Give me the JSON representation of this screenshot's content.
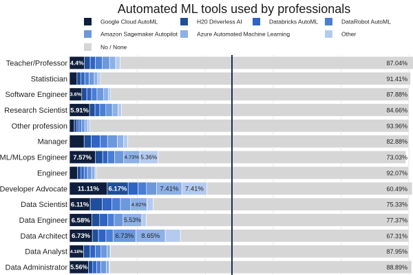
{
  "chart_data": {
    "type": "bar",
    "orientation": "horizontal",
    "stacked": true,
    "title": "Automated ML tools used by professionals",
    "xlim": [
      0,
      100
    ],
    "grid": true,
    "legend_position": "top",
    "series": [
      {
        "name": "Google Cloud AutoML",
        "color": "#0f1e3c"
      },
      {
        "name": "H20 Driverless AI",
        "color": "#1f4e9a"
      },
      {
        "name": "Databricks AutoML",
        "color": "#2f63c4"
      },
      {
        "name": "DataRobot AutoML",
        "color": "#4a7ed4"
      },
      {
        "name": "Amazon Sagemaker Autopilot",
        "color": "#6c98dc"
      },
      {
        "name": "Azure Automated Machine Learning",
        "color": "#8db0e6"
      },
      {
        "name": "Other",
        "color": "#b4cbef"
      },
      {
        "name": "No / None",
        "color": "#d6d6d6"
      }
    ],
    "categories": [
      "Teacher/Professor",
      "Statistician",
      "Software Engineer",
      "Research Scientist",
      "Other profession",
      "Manager",
      "ML/MLops Engineer",
      "Engineer",
      "Developer Advocate",
      "Data Scientist",
      "Data Engineer",
      "Data Architect",
      "Data Analyst",
      "Data Administrator"
    ],
    "rows": [
      {
        "values": [
          4.4,
          1.7,
          1.5,
          2.0,
          2.2,
          1.8,
          1.3,
          87.04
        ],
        "labels": [
          "4.4%",
          "",
          "",
          "",
          "",
          "",
          "",
          "87.04%"
        ]
      },
      {
        "values": [
          2.2,
          1.1,
          1.2,
          1.3,
          1.5,
          1.0,
          0.79,
          91.41
        ],
        "labels": [
          "",
          "",
          "",
          "",
          "",
          "",
          "",
          "91.41%"
        ]
      },
      {
        "values": [
          3.6,
          1.5,
          1.4,
          1.6,
          1.9,
          1.5,
          0.62,
          87.88
        ],
        "labels": [
          "3.6%",
          "",
          "",
          "",
          "",
          "",
          "",
          "87.88%"
        ]
      },
      {
        "values": [
          5.91,
          1.6,
          1.4,
          1.8,
          1.9,
          1.7,
          1.03,
          84.66
        ],
        "labels": [
          "5.91%",
          "",
          "",
          "",
          "",
          "",
          "",
          "84.66%"
        ]
      },
      {
        "values": [
          1.4,
          0.8,
          0.6,
          0.7,
          1.0,
          0.8,
          0.74,
          93.96
        ],
        "labels": [
          "",
          "",
          "",
          "",
          "",
          "",
          "",
          "93.96%"
        ]
      },
      {
        "values": [
          4.3,
          2.1,
          2.6,
          2.2,
          2.9,
          1.8,
          1.22,
          82.88
        ],
        "labels": [
          "",
          "",
          "",
          "",
          "",
          "",
          "",
          "82.88%"
        ]
      },
      {
        "values": [
          7.57,
          2.2,
          1.5,
          2.0,
          2.7,
          4.73,
          5.36,
          73.03
        ],
        "labels": [
          "7.57%",
          "",
          "",
          "",
          "",
          "4.73%",
          "5.36%",
          "73.03%"
        ]
      },
      {
        "values": [
          2.3,
          1.1,
          0.9,
          1.0,
          1.2,
          1.0,
          0.41,
          92.07
        ],
        "labels": [
          "",
          "",
          "",
          "",
          "",
          "",
          "",
          "92.07%"
        ]
      },
      {
        "values": [
          11.11,
          6.17,
          2.9,
          2.5,
          3.0,
          7.41,
          7.41,
          60.49
        ],
        "labels": [
          "11.11%",
          "6.17%",
          "",
          "",
          "",
          "7.41%",
          "7.41%",
          "60.49%"
        ]
      },
      {
        "values": [
          6.11,
          3.5,
          2.9,
          2.5,
          3.0,
          4.82,
          1.81,
          75.33
        ],
        "labels": [
          "6.11%",
          "",
          "",
          "",
          "",
          "4.82%",
          "",
          "75.33%"
        ]
      },
      {
        "values": [
          6.58,
          2.3,
          2.4,
          1.9,
          2.6,
          5.53,
          1.31,
          77.37
        ],
        "labels": [
          "6.58%",
          "",
          "",
          "",
          "",
          "5.53%",
          "",
          "77.37%"
        ]
      },
      {
        "values": [
          6.73,
          1.8,
          2.2,
          2.1,
          6.73,
          8.65,
          4.48,
          67.31
        ],
        "labels": [
          "6.73%",
          "",
          "",
          "",
          "6.73%",
          "8.65%",
          "",
          "67.31%"
        ]
      },
      {
        "values": [
          4.18,
          1.9,
          1.5,
          1.7,
          1.8,
          0.9,
          0.07,
          87.95
        ],
        "labels": [
          "4.18%",
          "",
          "",
          "",
          "",
          "",
          "",
          "87.95%"
        ]
      },
      {
        "values": [
          5.56,
          1.3,
          1.1,
          1.3,
          1.6,
          0.8,
          0.26,
          88.89
        ],
        "labels": [
          "5.56%",
          "",
          "",
          "",
          "",
          "",
          "",
          "88.89%"
        ]
      }
    ]
  }
}
